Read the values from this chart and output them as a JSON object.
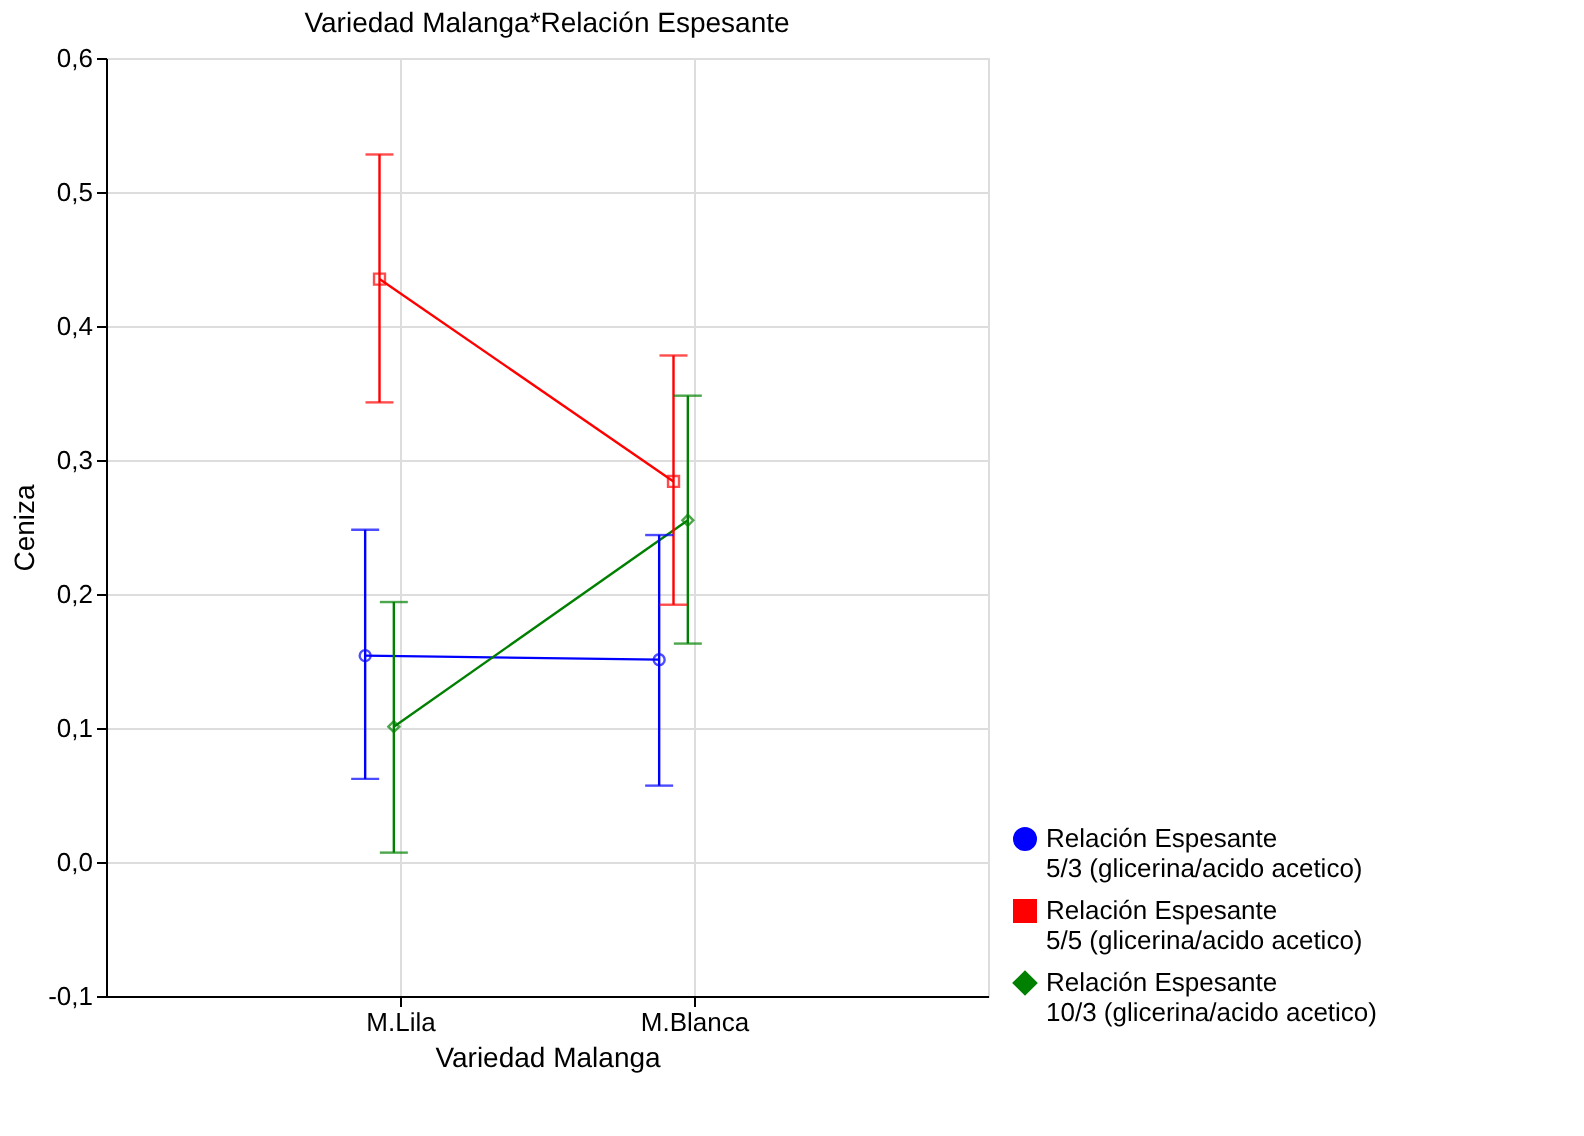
{
  "chart_data": {
    "type": "line",
    "title": "Variedad Malanga*Relación Espesante",
    "xlabel": "Variedad Malanga",
    "ylabel": "Ceniza",
    "categories": [
      "M.Lila",
      "M.Blanca"
    ],
    "series": [
      {
        "name": "Relación Espesante\n5/3 (glicerina/acido acetico)",
        "color": "#0000ff",
        "marker": "circle",
        "values": [
          0.154,
          0.151
        ],
        "errors": [
          [
            0.062,
            0.248
          ],
          [
            0.057,
            0.244
          ]
        ]
      },
      {
        "name": "Relación Espesante\n5/5 (glicerina/acido acetico)",
        "color": "#ff0000",
        "marker": "square",
        "values": [
          0.435,
          0.284
        ],
        "errors": [
          [
            0.343,
            0.528
          ],
          [
            0.192,
            0.378
          ]
        ]
      },
      {
        "name": "Relación Espesante\n10/3 (glicerina/acido acetico)",
        "color": "#008000",
        "marker": "diamond",
        "values": [
          0.101,
          0.255
        ],
        "errors": [
          [
            0.007,
            0.194
          ],
          [
            0.163,
            0.348
          ]
        ]
      }
    ],
    "ylim": [
      -0.1,
      0.6
    ],
    "yticks": [
      {
        "value": -0.1,
        "label": "-0,1"
      },
      {
        "value": 0,
        "label": "0,0"
      },
      {
        "value": 0.1,
        "label": "0,1"
      },
      {
        "value": 0.2,
        "label": "0,2"
      },
      {
        "value": 0.3,
        "label": "0,3"
      },
      {
        "value": 0.4,
        "label": "0,4"
      },
      {
        "value": 0.5,
        "label": "0,5"
      },
      {
        "value": 0.6,
        "label": "0,6"
      }
    ],
    "grid": true,
    "legend": "bottom right",
    "line_style": "solid"
  }
}
